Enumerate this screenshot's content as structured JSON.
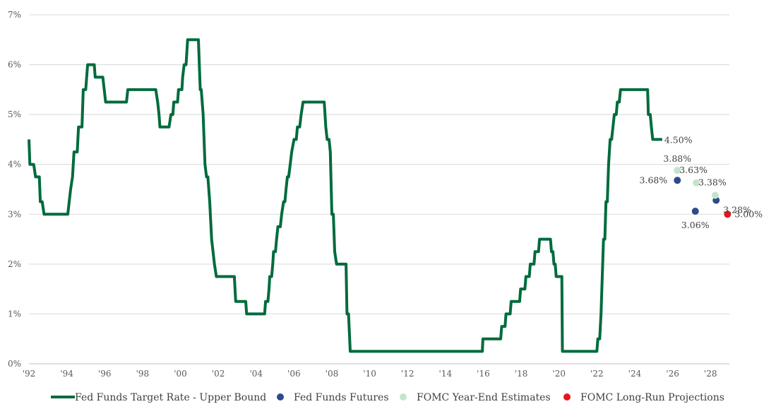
{
  "chart_data": {
    "type": "line",
    "title": "",
    "xlabel": "",
    "ylabel": "",
    "xlim": [
      1992,
      2029
    ],
    "ylim": [
      0,
      7
    ],
    "grid": "horizontal",
    "legend_position": "bottom",
    "y_ticks": [
      {
        "value": 0,
        "label": "0%"
      },
      {
        "value": 1,
        "label": "1%"
      },
      {
        "value": 2,
        "label": "2%"
      },
      {
        "value": 3,
        "label": "3%"
      },
      {
        "value": 4,
        "label": "4%"
      },
      {
        "value": 5,
        "label": "5%"
      },
      {
        "value": 6,
        "label": "6%"
      },
      {
        "value": 7,
        "label": "7%"
      }
    ],
    "x_ticks": [
      {
        "value": 1992,
        "label": "'92"
      },
      {
        "value": 1994,
        "label": "'94"
      },
      {
        "value": 1996,
        "label": "'96"
      },
      {
        "value": 1998,
        "label": "'98"
      },
      {
        "value": 2000,
        "label": "'00"
      },
      {
        "value": 2002,
        "label": "'02"
      },
      {
        "value": 2004,
        "label": "'04"
      },
      {
        "value": 2006,
        "label": "'06"
      },
      {
        "value": 2008,
        "label": "'08"
      },
      {
        "value": 2010,
        "label": "'10"
      },
      {
        "value": 2012,
        "label": "'12"
      },
      {
        "value": 2014,
        "label": "'14"
      },
      {
        "value": 2016,
        "label": "'16"
      },
      {
        "value": 2018,
        "label": "'18"
      },
      {
        "value": 2020,
        "label": "'20"
      },
      {
        "value": 2022,
        "label": "'22"
      },
      {
        "value": 2024,
        "label": "'24"
      },
      {
        "value": 2026,
        "label": "'26"
      },
      {
        "value": 2028,
        "label": "'28"
      }
    ],
    "series": [
      {
        "name": "Fed Funds Target Rate - Upper Bound",
        "kind": "line",
        "color": "#006b3c",
        "points": [
          [
            1992.0,
            4.5
          ],
          [
            1992.05,
            4.0
          ],
          [
            1992.25,
            4.0
          ],
          [
            1992.35,
            3.75
          ],
          [
            1992.55,
            3.75
          ],
          [
            1992.6,
            3.25
          ],
          [
            1992.7,
            3.25
          ],
          [
            1992.8,
            3.0
          ],
          [
            1994.05,
            3.0
          ],
          [
            1994.2,
            3.5
          ],
          [
            1994.3,
            3.75
          ],
          [
            1994.38,
            4.25
          ],
          [
            1994.55,
            4.25
          ],
          [
            1994.62,
            4.75
          ],
          [
            1994.8,
            4.75
          ],
          [
            1994.87,
            5.5
          ],
          [
            1995.0,
            5.5
          ],
          [
            1995.1,
            6.0
          ],
          [
            1995.45,
            6.0
          ],
          [
            1995.5,
            5.75
          ],
          [
            1995.9,
            5.75
          ],
          [
            1996.05,
            5.25
          ],
          [
            1997.15,
            5.25
          ],
          [
            1997.22,
            5.5
          ],
          [
            1998.7,
            5.5
          ],
          [
            1998.8,
            5.25
          ],
          [
            1998.87,
            5.0
          ],
          [
            1998.92,
            4.75
          ],
          [
            1999.4,
            4.75
          ],
          [
            1999.5,
            5.0
          ],
          [
            1999.6,
            5.0
          ],
          [
            1999.65,
            5.25
          ],
          [
            1999.85,
            5.25
          ],
          [
            1999.9,
            5.5
          ],
          [
            2000.08,
            5.5
          ],
          [
            2000.12,
            5.75
          ],
          [
            2000.2,
            6.0
          ],
          [
            2000.3,
            6.0
          ],
          [
            2000.38,
            6.5
          ],
          [
            2000.95,
            6.5
          ],
          [
            2001.05,
            5.5
          ],
          [
            2001.1,
            5.5
          ],
          [
            2001.2,
            5.0
          ],
          [
            2001.3,
            4.0
          ],
          [
            2001.38,
            3.75
          ],
          [
            2001.45,
            3.75
          ],
          [
            2001.55,
            3.25
          ],
          [
            2001.65,
            2.5
          ],
          [
            2001.8,
            2.0
          ],
          [
            2001.9,
            1.75
          ],
          [
            2002.85,
            1.75
          ],
          [
            2002.92,
            1.25
          ],
          [
            2003.45,
            1.25
          ],
          [
            2003.5,
            1.0
          ],
          [
            2004.45,
            1.0
          ],
          [
            2004.5,
            1.25
          ],
          [
            2004.62,
            1.25
          ],
          [
            2004.68,
            1.5
          ],
          [
            2004.72,
            1.75
          ],
          [
            2004.82,
            1.75
          ],
          [
            2004.88,
            2.0
          ],
          [
            2004.92,
            2.25
          ],
          [
            2005.02,
            2.25
          ],
          [
            2005.08,
            2.5
          ],
          [
            2005.15,
            2.75
          ],
          [
            2005.28,
            2.75
          ],
          [
            2005.35,
            3.0
          ],
          [
            2005.45,
            3.25
          ],
          [
            2005.52,
            3.25
          ],
          [
            2005.58,
            3.5
          ],
          [
            2005.65,
            3.75
          ],
          [
            2005.72,
            3.75
          ],
          [
            2005.8,
            4.0
          ],
          [
            2005.88,
            4.25
          ],
          [
            2006.0,
            4.5
          ],
          [
            2006.12,
            4.5
          ],
          [
            2006.18,
            4.75
          ],
          [
            2006.3,
            4.75
          ],
          [
            2006.38,
            5.0
          ],
          [
            2006.48,
            5.25
          ],
          [
            2007.6,
            5.25
          ],
          [
            2007.68,
            4.75
          ],
          [
            2007.75,
            4.5
          ],
          [
            2007.85,
            4.5
          ],
          [
            2007.92,
            4.25
          ],
          [
            2008.0,
            3.0
          ],
          [
            2008.08,
            3.0
          ],
          [
            2008.15,
            2.25
          ],
          [
            2008.25,
            2.0
          ],
          [
            2008.75,
            2.0
          ],
          [
            2008.8,
            1.0
          ],
          [
            2008.88,
            1.0
          ],
          [
            2008.97,
            0.25
          ],
          [
            2015.95,
            0.25
          ],
          [
            2015.98,
            0.5
          ],
          [
            2016.92,
            0.5
          ],
          [
            2016.97,
            0.75
          ],
          [
            2017.15,
            0.75
          ],
          [
            2017.2,
            1.0
          ],
          [
            2017.42,
            1.0
          ],
          [
            2017.47,
            1.25
          ],
          [
            2017.92,
            1.25
          ],
          [
            2017.97,
            1.5
          ],
          [
            2018.2,
            1.5
          ],
          [
            2018.25,
            1.75
          ],
          [
            2018.43,
            1.75
          ],
          [
            2018.48,
            2.0
          ],
          [
            2018.68,
            2.0
          ],
          [
            2018.73,
            2.25
          ],
          [
            2018.92,
            2.25
          ],
          [
            2018.97,
            2.5
          ],
          [
            2019.55,
            2.5
          ],
          [
            2019.6,
            2.25
          ],
          [
            2019.68,
            2.25
          ],
          [
            2019.73,
            2.0
          ],
          [
            2019.8,
            2.0
          ],
          [
            2019.85,
            1.75
          ],
          [
            2020.15,
            1.75
          ],
          [
            2020.18,
            0.25
          ],
          [
            2022.0,
            0.25
          ],
          [
            2022.05,
            0.5
          ],
          [
            2022.15,
            0.5
          ],
          [
            2022.22,
            1.0
          ],
          [
            2022.35,
            2.5
          ],
          [
            2022.42,
            2.5
          ],
          [
            2022.48,
            3.25
          ],
          [
            2022.55,
            3.25
          ],
          [
            2022.62,
            4.0
          ],
          [
            2022.7,
            4.5
          ],
          [
            2022.78,
            4.5
          ],
          [
            2022.85,
            4.75
          ],
          [
            2022.92,
            5.0
          ],
          [
            2023.02,
            5.0
          ],
          [
            2023.08,
            5.25
          ],
          [
            2023.18,
            5.25
          ],
          [
            2023.25,
            5.5
          ],
          [
            2024.35,
            5.5
          ],
          [
            2024.68,
            5.5
          ],
          [
            2024.72,
            5.0
          ],
          [
            2024.82,
            5.0
          ],
          [
            2024.88,
            4.75
          ],
          [
            2024.95,
            4.5
          ],
          [
            2025.45,
            4.5
          ]
        ],
        "end_label": {
          "x": 2025.45,
          "y": 4.5,
          "text": "4.50%"
        }
      },
      {
        "name": "Fed Funds Futures",
        "kind": "markers",
        "color": "#2e4a8c",
        "points": [
          {
            "x": 2026.25,
            "y": 3.68,
            "label": "3.68%",
            "label_pos": "left"
          },
          {
            "x": 2027.2,
            "y": 3.06,
            "label": "3.06%",
            "label_pos": "below"
          },
          {
            "x": 2028.3,
            "y": 3.28,
            "label": "3.28%",
            "label_pos": "below-right"
          }
        ]
      },
      {
        "name": "FOMC Year-End Estimates",
        "kind": "markers",
        "color": "#c6e3cc",
        "points": [
          {
            "x": 2026.25,
            "y": 3.88,
            "label": "3.88%",
            "label_pos": "above"
          },
          {
            "x": 2027.25,
            "y": 3.63,
            "label": "3.63%",
            "label_pos": "above-left"
          },
          {
            "x": 2028.25,
            "y": 3.38,
            "label": "3.38%",
            "label_pos": "above-left"
          }
        ]
      },
      {
        "name": "FOMC Long-Run Projections",
        "kind": "markers",
        "color": "#e8141c",
        "points": [
          {
            "x": 2028.9,
            "y": 3.0,
            "label": "3.00%",
            "label_pos": "right"
          }
        ]
      }
    ]
  }
}
